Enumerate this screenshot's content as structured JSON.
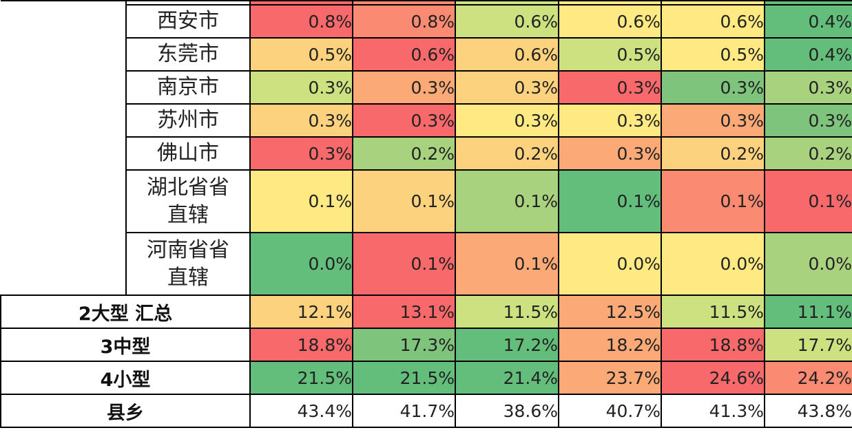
{
  "palette": {
    "R": "#f8696b",
    "r": "#fa8a72",
    "O": "#fbaa77",
    "y": "#fdd27f",
    "Y": "#fee983",
    "g": "#cde181",
    "L": "#a9d27f",
    "G": "#7fc47d",
    "D": "#63be7b",
    "W": "#ffffff"
  },
  "cities": [
    {
      "name": "西安市",
      "values": [
        "0.8%",
        "0.8%",
        "0.6%",
        "0.6%",
        "0.6%",
        "0.4%"
      ],
      "colors": [
        "R",
        "r",
        "g",
        "Y",
        "Y",
        "D"
      ]
    },
    {
      "name": "东莞市",
      "values": [
        "0.5%",
        "0.6%",
        "0.6%",
        "0.5%",
        "0.5%",
        "0.4%"
      ],
      "colors": [
        "y",
        "R",
        "y",
        "g",
        "Y",
        "D"
      ]
    },
    {
      "name": "南京市",
      "values": [
        "0.3%",
        "0.3%",
        "0.3%",
        "0.3%",
        "0.3%",
        "0.3%"
      ],
      "colors": [
        "g",
        "O",
        "y",
        "R",
        "G",
        "L"
      ]
    },
    {
      "name": "苏州市",
      "values": [
        "0.3%",
        "0.3%",
        "0.3%",
        "0.3%",
        "0.3%",
        "0.3%"
      ],
      "colors": [
        "y",
        "R",
        "Y",
        "Y",
        "O",
        "G"
      ]
    },
    {
      "name": "佛山市",
      "values": [
        "0.3%",
        "0.2%",
        "0.2%",
        "0.3%",
        "0.2%",
        "0.2%"
      ],
      "colors": [
        "R",
        "L",
        "y",
        "O",
        "y",
        "L"
      ]
    },
    {
      "name": "湖北省省直辖",
      "values": [
        "0.1%",
        "0.1%",
        "0.1%",
        "0.1%",
        "0.1%",
        "0.1%"
      ],
      "colors": [
        "Y",
        "y",
        "L",
        "D",
        "r",
        "R"
      ]
    },
    {
      "name": "河南省省直辖",
      "values": [
        "0.0%",
        "0.1%",
        "0.1%",
        "0.0%",
        "0.0%",
        "0.0%"
      ],
      "colors": [
        "D",
        "R",
        "O",
        "Y",
        "Y",
        "L"
      ]
    }
  ],
  "groups": [
    {
      "name": "2大型 汇总",
      "values": [
        "12.1%",
        "13.1%",
        "11.5%",
        "12.5%",
        "11.5%",
        "11.1%"
      ],
      "colors": [
        "y",
        "R",
        "g",
        "O",
        "g",
        "D"
      ]
    },
    {
      "name": "3中型",
      "values": [
        "18.8%",
        "17.3%",
        "17.2%",
        "18.2%",
        "18.8%",
        "17.7%"
      ],
      "colors": [
        "R",
        "G",
        "D",
        "O",
        "R",
        "g"
      ]
    },
    {
      "name": "4小型",
      "values": [
        "21.5%",
        "21.5%",
        "21.4%",
        "23.7%",
        "24.6%",
        "24.2%"
      ],
      "colors": [
        "D",
        "D",
        "D",
        "O",
        "R",
        "r"
      ]
    },
    {
      "name": "县乡",
      "values": [
        "43.4%",
        "41.7%",
        "38.6%",
        "40.7%",
        "41.3%",
        "43.8%"
      ],
      "colors": [
        "W",
        "W",
        "W",
        "W",
        "W",
        "W"
      ]
    }
  ]
}
